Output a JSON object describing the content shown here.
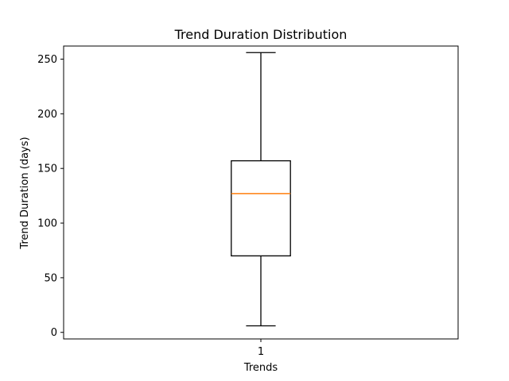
{
  "chart_data": {
    "type": "box",
    "title": "Trend Duration Distribution",
    "xlabel": "Trends",
    "ylabel": "Trend Duration (days)",
    "categories": [
      "1"
    ],
    "ylim": [
      -6,
      262
    ],
    "yticks": [
      0,
      50,
      100,
      150,
      200,
      250
    ],
    "grid": false,
    "boxes": [
      {
        "category": "1",
        "whisker_low": 6,
        "q1": 70,
        "median": 127,
        "q3": 157,
        "whisker_high": 256
      }
    ],
    "colors": {
      "box": "#000000",
      "median": "#ff7f0e",
      "axes": "#000000"
    }
  }
}
